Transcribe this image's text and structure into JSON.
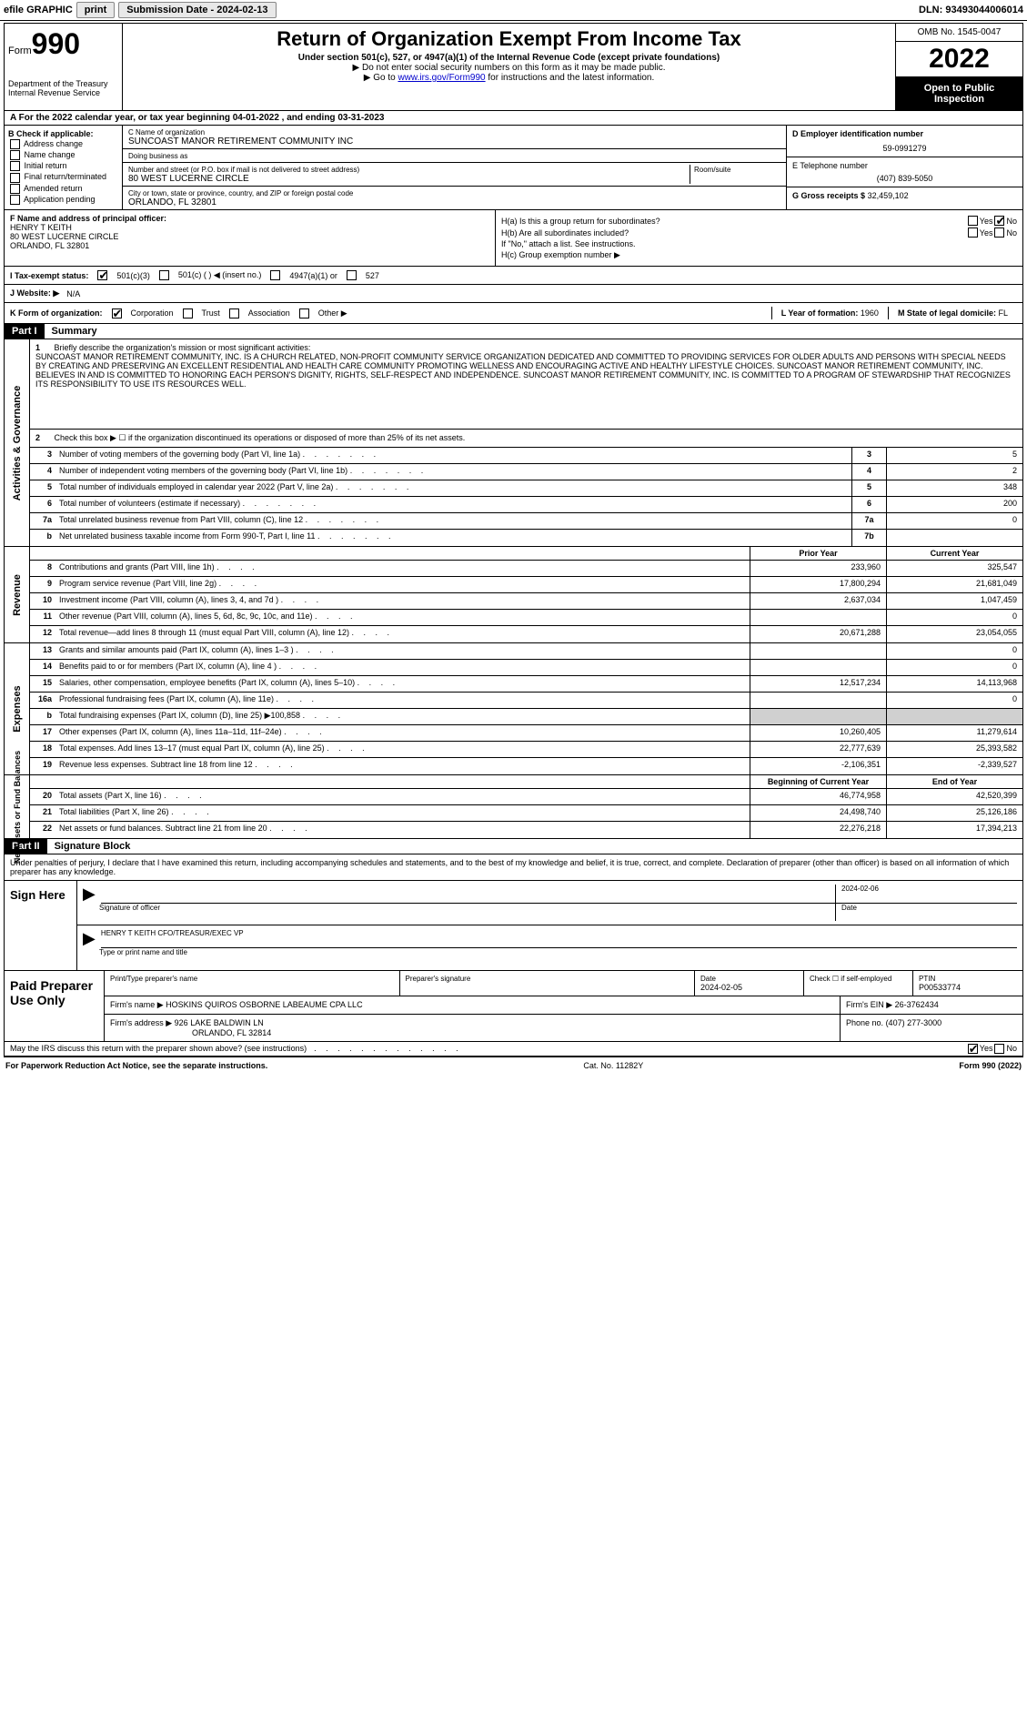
{
  "top_bar": {
    "efile": "efile GRAPHIC",
    "print": "print",
    "submission_label": "Submission Date - 2024-02-13",
    "dln": "DLN: 93493044006014"
  },
  "header": {
    "form_label": "Form",
    "form_number": "990",
    "dept": "Department of the Treasury",
    "irs": "Internal Revenue Service",
    "title": "Return of Organization Exempt From Income Tax",
    "subtitle": "Under section 501(c), 527, or 4947(a)(1) of the Internal Revenue Code (except private foundations)",
    "note1": "▶ Do not enter social security numbers on this form as it may be made public.",
    "note2_pre": "▶ Go to ",
    "note2_link": "www.irs.gov/Form990",
    "note2_post": " for instructions and the latest information.",
    "omb": "OMB No. 1545-0047",
    "year": "2022",
    "open_public": "Open to Public Inspection"
  },
  "row_a": "A For the 2022 calendar year, or tax year beginning 04-01-2022    , and ending 03-31-2023",
  "col_b": {
    "title": "B Check if applicable:",
    "items": [
      "Address change",
      "Name change",
      "Initial return",
      "Final return/terminated",
      "Amended return",
      "Application pending"
    ]
  },
  "col_c": {
    "name_label": "C Name of organization",
    "name": "SUNCOAST MANOR RETIREMENT COMMUNITY INC",
    "dba_label": "Doing business as",
    "dba": "",
    "street_label": "Number and street (or P.O. box if mail is not delivered to street address)",
    "room_label": "Room/suite",
    "street": "80 WEST LUCERNE CIRCLE",
    "city_label": "City or town, state or province, country, and ZIP or foreign postal code",
    "city": "ORLANDO, FL  32801"
  },
  "col_de": {
    "d_label": "D Employer identification number",
    "d_val": "59-0991279",
    "e_label": "E Telephone number",
    "e_val": "(407) 839-5050",
    "g_label": "G Gross receipts $",
    "g_val": "32,459,102"
  },
  "col_f": {
    "label": "F  Name and address of principal officer:",
    "name": "HENRY T KEITH",
    "street": "80 WEST LUCERNE CIRCLE",
    "city": "ORLANDO, FL  32801"
  },
  "col_h": {
    "ha_label": "H(a)  Is this a group return for subordinates?",
    "ha_yes": "Yes",
    "ha_no": "No",
    "hb_label": "H(b)  Are all subordinates included?",
    "hb_yes": "Yes",
    "hb_no": "No",
    "hb_note": "If \"No,\" attach a list. See instructions.",
    "hc_label": "H(c)  Group exemption number ▶"
  },
  "row_i": {
    "label": "I   Tax-exempt status:",
    "opts": [
      "501(c)(3)",
      "501(c) (   ) ◀ (insert no.)",
      "4947(a)(1) or",
      "527"
    ]
  },
  "row_j": {
    "label": "J   Website: ▶",
    "val": "N/A"
  },
  "row_k": {
    "label": "K Form of organization:",
    "opts": [
      "Corporation",
      "Trust",
      "Association",
      "Other ▶"
    ],
    "l_label": "L Year of formation:",
    "l_val": "1960",
    "m_label": "M State of legal domicile:",
    "m_val": "FL"
  },
  "part1": {
    "header": "Part I",
    "title": "Summary",
    "mission_label": "Briefly describe the organization's mission or most significant activities:",
    "mission": "SUNCOAST MANOR RETIREMENT COMMUNITY, INC. IS A CHURCH RELATED, NON-PROFIT COMMUNITY SERVICE ORGANIZATION DEDICATED AND COMMITTED TO PROVIDING SERVICES FOR OLDER ADULTS AND PERSONS WITH SPECIAL NEEDS BY CREATING AND PRESERVING AN EXCELLENT RESIDENTIAL AND HEALTH CARE COMMUNITY PROMOTING WELLNESS AND ENCOURAGING ACTIVE AND HEALTHY LIFESTYLE CHOICES. SUNCOAST MANOR RETIREMENT COMMUNITY, INC. BELIEVES IN AND IS COMMITTED TO HONORING EACH PERSON'S DIGNITY, RIGHTS, SELF-RESPECT AND INDEPENDENCE. SUNCOAST MANOR RETIREMENT COMMUNITY, INC. IS COMMITTED TO A PROGRAM OF STEWARDSHIP THAT RECOGNIZES ITS RESPONSIBILITY TO USE ITS RESOURCES WELL.",
    "line2": "Check this box ▶ ☐  if the organization discontinued its operations or disposed of more than 25% of its net assets."
  },
  "governance_rows": [
    {
      "n": "3",
      "desc": "Number of voting members of the governing body (Part VI, line 1a)",
      "box": "3",
      "val": "5"
    },
    {
      "n": "4",
      "desc": "Number of independent voting members of the governing body (Part VI, line 1b)",
      "box": "4",
      "val": "2"
    },
    {
      "n": "5",
      "desc": "Total number of individuals employed in calendar year 2022 (Part V, line 2a)",
      "box": "5",
      "val": "348"
    },
    {
      "n": "6",
      "desc": "Total number of volunteers (estimate if necessary)",
      "box": "6",
      "val": "200"
    },
    {
      "n": "7a",
      "desc": "Total unrelated business revenue from Part VIII, column (C), line 12",
      "box": "7a",
      "val": "0"
    },
    {
      "n": "b",
      "desc": "Net unrelated business taxable income from Form 990-T, Part I, line 11",
      "box": "7b",
      "val": ""
    }
  ],
  "col_headers": {
    "prior": "Prior Year",
    "current": "Current Year"
  },
  "revenue_rows": [
    {
      "n": "8",
      "desc": "Contributions and grants (Part VIII, line 1h)",
      "prior": "233,960",
      "current": "325,547"
    },
    {
      "n": "9",
      "desc": "Program service revenue (Part VIII, line 2g)",
      "prior": "17,800,294",
      "current": "21,681,049"
    },
    {
      "n": "10",
      "desc": "Investment income (Part VIII, column (A), lines 3, 4, and 7d )",
      "prior": "2,637,034",
      "current": "1,047,459"
    },
    {
      "n": "11",
      "desc": "Other revenue (Part VIII, column (A), lines 5, 6d, 8c, 9c, 10c, and 11e)",
      "prior": "",
      "current": "0"
    },
    {
      "n": "12",
      "desc": "Total revenue—add lines 8 through 11 (must equal Part VIII, column (A), line 12)",
      "prior": "20,671,288",
      "current": "23,054,055"
    }
  ],
  "expense_rows": [
    {
      "n": "13",
      "desc": "Grants and similar amounts paid (Part IX, column (A), lines 1–3 )",
      "prior": "",
      "current": "0"
    },
    {
      "n": "14",
      "desc": "Benefits paid to or for members (Part IX, column (A), line 4 )",
      "prior": "",
      "current": "0"
    },
    {
      "n": "15",
      "desc": "Salaries, other compensation, employee benefits (Part IX, column (A), lines 5–10)",
      "prior": "12,517,234",
      "current": "14,113,968"
    },
    {
      "n": "16a",
      "desc": "Professional fundraising fees (Part IX, column (A), line 11e)",
      "prior": "",
      "current": "0"
    },
    {
      "n": "b",
      "desc": "Total fundraising expenses (Part IX, column (D), line 25) ▶100,858",
      "prior": "grey",
      "current": "grey"
    },
    {
      "n": "17",
      "desc": "Other expenses (Part IX, column (A), lines 11a–11d, 11f–24e)",
      "prior": "10,260,405",
      "current": "11,279,614"
    },
    {
      "n": "18",
      "desc": "Total expenses. Add lines 13–17 (must equal Part IX, column (A), line 25)",
      "prior": "22,777,639",
      "current": "25,393,582"
    },
    {
      "n": "19",
      "desc": "Revenue less expenses. Subtract line 18 from line 12",
      "prior": "-2,106,351",
      "current": "-2,339,527"
    }
  ],
  "net_headers": {
    "begin": "Beginning of Current Year",
    "end": "End of Year"
  },
  "net_rows": [
    {
      "n": "20",
      "desc": "Total assets (Part X, line 16)",
      "prior": "46,774,958",
      "current": "42,520,399"
    },
    {
      "n": "21",
      "desc": "Total liabilities (Part X, line 26)",
      "prior": "24,498,740",
      "current": "25,126,186"
    },
    {
      "n": "22",
      "desc": "Net assets or fund balances. Subtract line 21 from line 20",
      "prior": "22,276,218",
      "current": "17,394,213"
    }
  ],
  "side_labels": {
    "gov": "Activities & Governance",
    "rev": "Revenue",
    "exp": "Expenses",
    "net": "Net Assets or Fund Balances"
  },
  "part2": {
    "header": "Part II",
    "title": "Signature Block",
    "text": "Under penalties of perjury, I declare that I have examined this return, including accompanying schedules and statements, and to the best of my knowledge and belief, it is true, correct, and complete. Declaration of preparer (other than officer) is based on all information of which preparer has any knowledge."
  },
  "sign": {
    "label": "Sign Here",
    "sig_label": "Signature of officer",
    "date_label": "Date",
    "date_val": "2024-02-06",
    "name": "HENRY T KEITH  CFO/TREASUR/EXEC VP",
    "name_label": "Type or print name and title"
  },
  "preparer": {
    "label": "Paid Preparer Use Only",
    "name_label": "Print/Type preparer's name",
    "sig_label": "Preparer's signature",
    "date_label": "Date",
    "date_val": "2024-02-05",
    "check_label": "Check ☐ if self-employed",
    "ptin_label": "PTIN",
    "ptin_val": "P00533774",
    "firm_name_label": "Firm's name    ▶",
    "firm_name": "HOSKINS QUIROS OSBORNE LABEAUME CPA LLC",
    "firm_ein_label": "Firm's EIN ▶",
    "firm_ein": "26-3762434",
    "firm_addr_label": "Firm's address ▶",
    "firm_addr": "926 LAKE BALDWIN LN",
    "firm_city": "ORLANDO, FL  32814",
    "phone_label": "Phone no.",
    "phone": "(407) 277-3000"
  },
  "footer": {
    "q": "May the IRS discuss this return with the preparer shown above? (see instructions)",
    "yes": "Yes",
    "no": "No",
    "paperwork": "For Paperwork Reduction Act Notice, see the separate instructions.",
    "cat": "Cat. No. 11282Y",
    "form": "Form 990 (2022)"
  }
}
